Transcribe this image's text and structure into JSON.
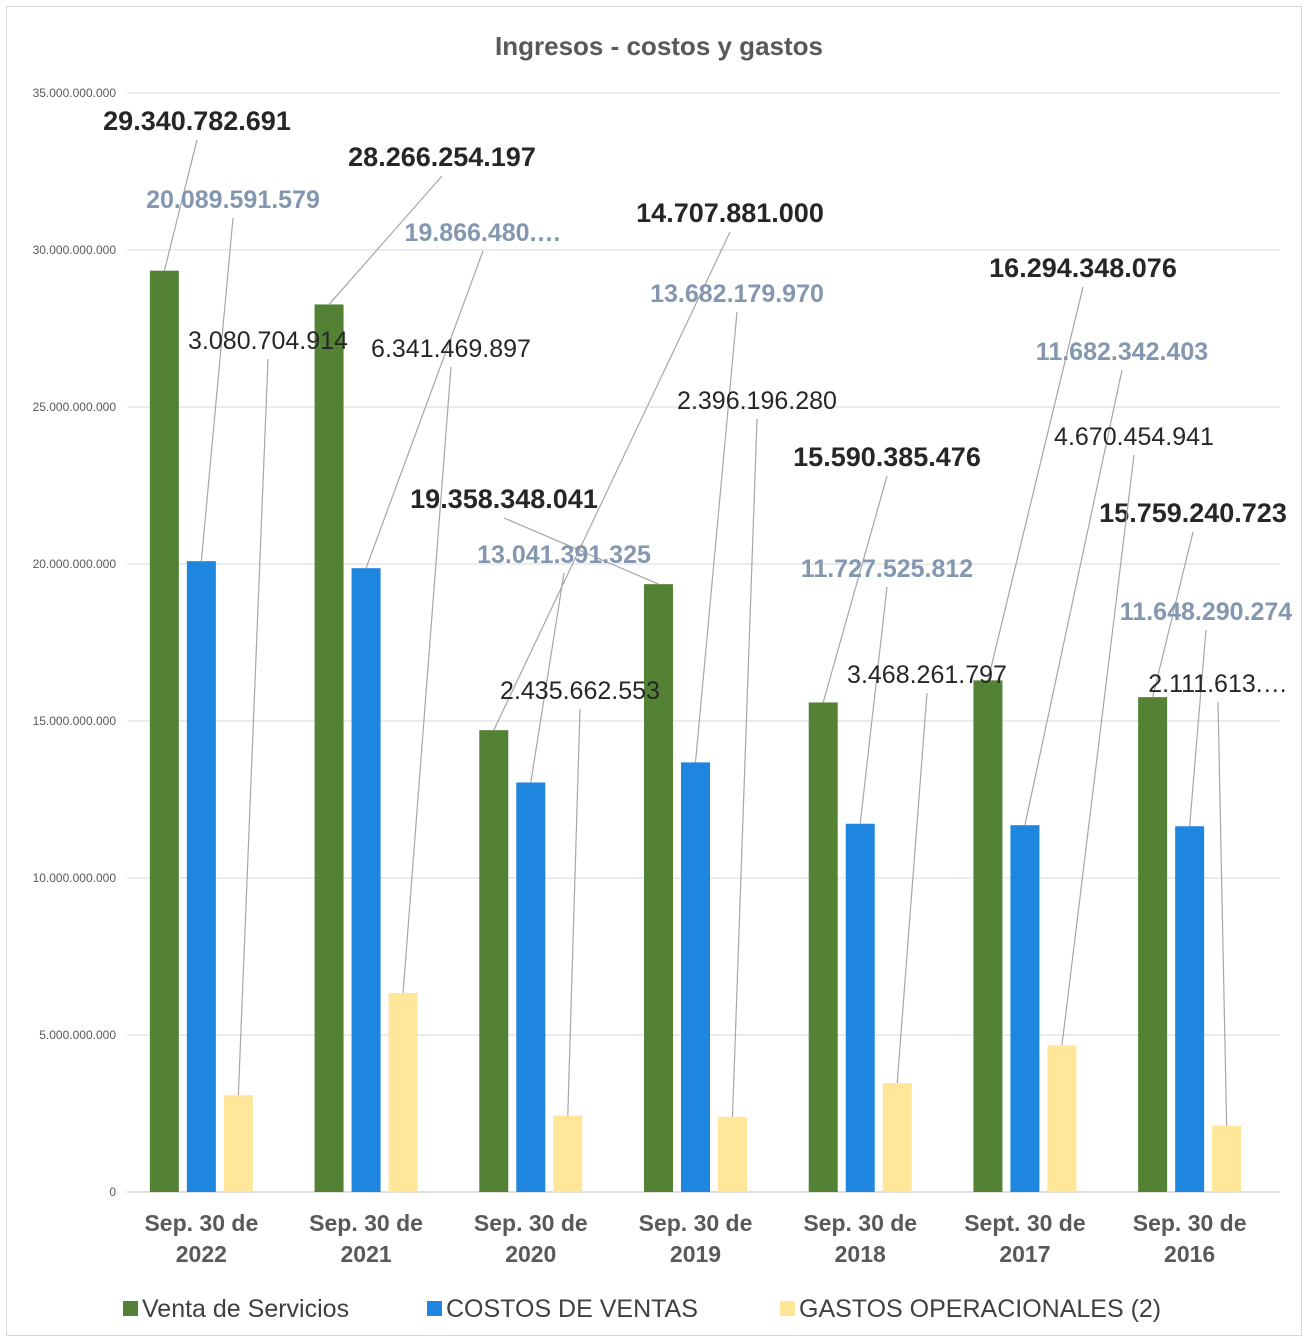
{
  "chart_data": {
    "type": "bar",
    "title": "Ingresos  -  costos y gastos",
    "categories": [
      [
        "Sep. 30 de",
        "2022"
      ],
      [
        "Sep. 30 de",
        "2021"
      ],
      [
        "Sep. 30 de",
        "2020"
      ],
      [
        "Sep. 30 de",
        "2019"
      ],
      [
        "Sep. 30 de",
        "2018"
      ],
      [
        "Sept. 30 de",
        "2017"
      ],
      [
        "Sep. 30 de",
        "2016"
      ]
    ],
    "series": [
      {
        "name": "Venta de Servicios",
        "color": "#548235",
        "values": [
          29340782691,
          28266254197,
          14707881000,
          19358348041,
          15590385476,
          16294348076,
          15759240723
        ],
        "labels": [
          "29.340.782.691",
          "28.266.254.197",
          "14.707.881.000",
          "19.358.348.041",
          "15.590.385.476",
          "16.294.348.076",
          "15.759.240.723"
        ]
      },
      {
        "name": "COSTOS DE VENTAS",
        "color": "#1f86df",
        "values": [
          20089591579,
          19866480000,
          13041391325,
          13682179970,
          11727525812,
          11682342403,
          11648290274
        ],
        "labels": [
          "20.089.591.579",
          "19.866.480.…",
          "13.041.391.325",
          "13.682.179.970",
          "11.727.525.812",
          "11.682.342.403",
          "11.648.290.274"
        ]
      },
      {
        "name": "GASTOS OPERACIONALES (2)",
        "color": "#ffe699",
        "values": [
          3080704914,
          6341469897,
          2435662553,
          2396196280,
          3468261797,
          4670454941,
          2111613000
        ],
        "labels": [
          "3.080.704.914",
          "6.341.469.897",
          "2.435.662.553",
          "2.396.196.280",
          "3.468.261.797",
          "4.670.454.941",
          "2.111.613.…"
        ]
      }
    ],
    "yticks": [
      "0",
      "5.000.000.000",
      "10.000.000.000",
      "15.000.000.000",
      "20.000.000.000",
      "25.000.000.000",
      "30.000.000.000",
      "35.000.000.000"
    ],
    "ylim": [
      0,
      35000000000
    ],
    "grid": true,
    "legend": "bottom"
  }
}
